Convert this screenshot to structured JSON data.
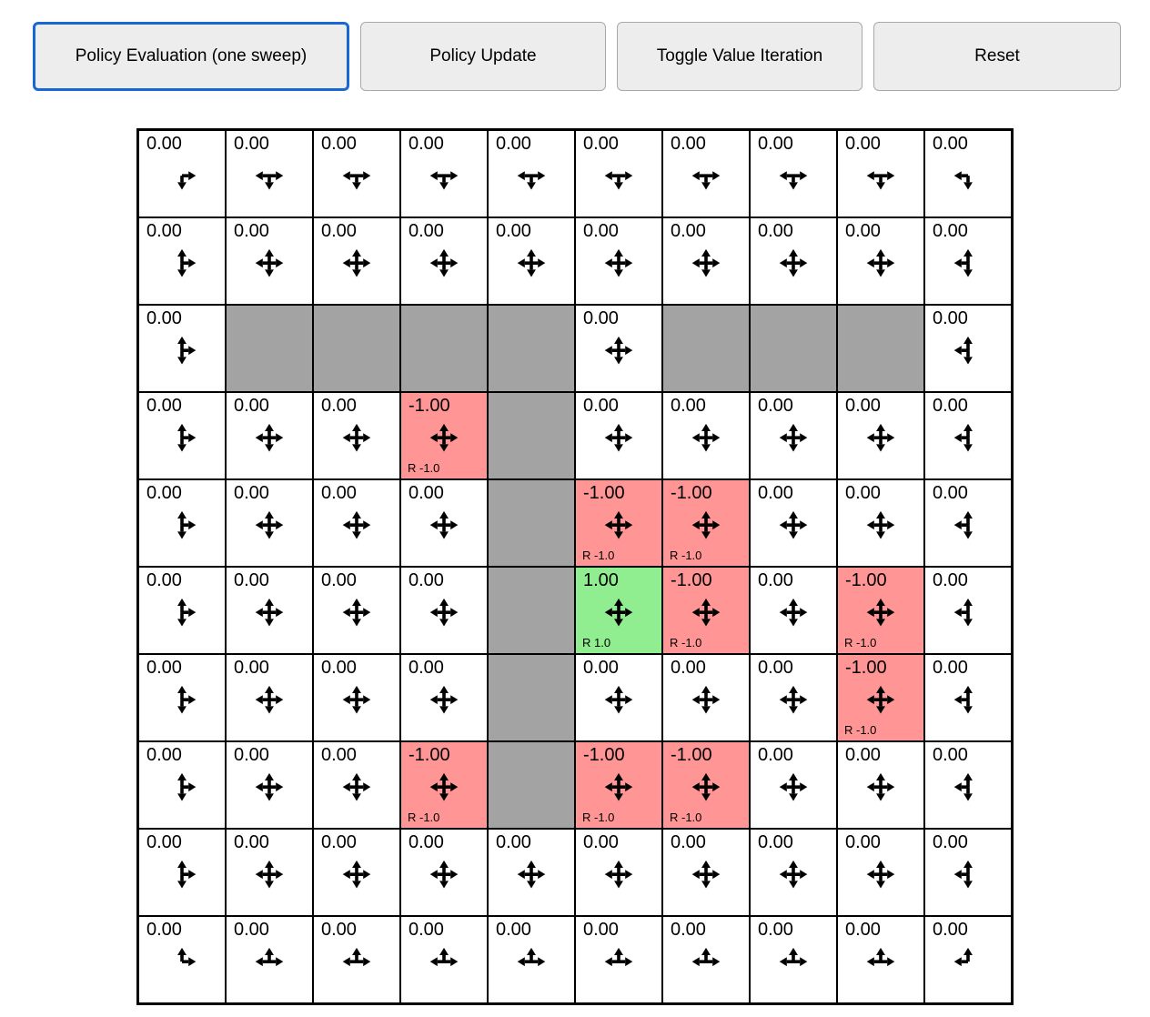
{
  "colors": {
    "focus_ring": "#1967d2",
    "wall": "#a3a3a3",
    "negative": "#ff9595",
    "positive": "#90ee90",
    "arrow": "#000000"
  },
  "toolbar": {
    "buttons": [
      {
        "label": "Policy Evaluation (one sweep)",
        "active": true
      },
      {
        "label": "Policy Update",
        "active": false
      },
      {
        "label": "Toggle Value Iteration",
        "active": false
      },
      {
        "label": "Reset",
        "active": false
      }
    ]
  },
  "grid": {
    "rows": 10,
    "cols": 10,
    "cells": [
      [
        {
          "type": "normal",
          "value": "0.00",
          "arrows": "RD"
        },
        {
          "type": "normal",
          "value": "0.00",
          "arrows": "LRD"
        },
        {
          "type": "normal",
          "value": "0.00",
          "arrows": "LRD"
        },
        {
          "type": "normal",
          "value": "0.00",
          "arrows": "LRD"
        },
        {
          "type": "normal",
          "value": "0.00",
          "arrows": "LRD"
        },
        {
          "type": "normal",
          "value": "0.00",
          "arrows": "LRD"
        },
        {
          "type": "normal",
          "value": "0.00",
          "arrows": "LRD"
        },
        {
          "type": "normal",
          "value": "0.00",
          "arrows": "LRD"
        },
        {
          "type": "normal",
          "value": "0.00",
          "arrows": "LRD"
        },
        {
          "type": "normal",
          "value": "0.00",
          "arrows": "LD"
        }
      ],
      [
        {
          "type": "normal",
          "value": "0.00",
          "arrows": "UDR"
        },
        {
          "type": "normal",
          "value": "0.00",
          "arrows": "UDLR"
        },
        {
          "type": "normal",
          "value": "0.00",
          "arrows": "UDLR"
        },
        {
          "type": "normal",
          "value": "0.00",
          "arrows": "UDLR"
        },
        {
          "type": "normal",
          "value": "0.00",
          "arrows": "UDLR"
        },
        {
          "type": "normal",
          "value": "0.00",
          "arrows": "UDLR"
        },
        {
          "type": "normal",
          "value": "0.00",
          "arrows": "UDLR"
        },
        {
          "type": "normal",
          "value": "0.00",
          "arrows": "UDLR"
        },
        {
          "type": "normal",
          "value": "0.00",
          "arrows": "UDLR"
        },
        {
          "type": "normal",
          "value": "0.00",
          "arrows": "UDL"
        }
      ],
      [
        {
          "type": "normal",
          "value": "0.00",
          "arrows": "UDR"
        },
        {
          "type": "wall"
        },
        {
          "type": "wall"
        },
        {
          "type": "wall"
        },
        {
          "type": "wall"
        },
        {
          "type": "normal",
          "value": "0.00",
          "arrows": "UDLR"
        },
        {
          "type": "wall"
        },
        {
          "type": "wall"
        },
        {
          "type": "wall"
        },
        {
          "type": "normal",
          "value": "0.00",
          "arrows": "UDL"
        }
      ],
      [
        {
          "type": "normal",
          "value": "0.00",
          "arrows": "UDR"
        },
        {
          "type": "normal",
          "value": "0.00",
          "arrows": "UDLR"
        },
        {
          "type": "normal",
          "value": "0.00",
          "arrows": "UDLR"
        },
        {
          "type": "negative",
          "value": "-1.00",
          "reward": "R -1.0",
          "arrows": "UDLR"
        },
        {
          "type": "wall"
        },
        {
          "type": "normal",
          "value": "0.00",
          "arrows": "UDLR"
        },
        {
          "type": "normal",
          "value": "0.00",
          "arrows": "UDLR"
        },
        {
          "type": "normal",
          "value": "0.00",
          "arrows": "UDLR"
        },
        {
          "type": "normal",
          "value": "0.00",
          "arrows": "UDLR"
        },
        {
          "type": "normal",
          "value": "0.00",
          "arrows": "UDL"
        }
      ],
      [
        {
          "type": "normal",
          "value": "0.00",
          "arrows": "UDR"
        },
        {
          "type": "normal",
          "value": "0.00",
          "arrows": "UDLR"
        },
        {
          "type": "normal",
          "value": "0.00",
          "arrows": "UDLR"
        },
        {
          "type": "normal",
          "value": "0.00",
          "arrows": "UDLR"
        },
        {
          "type": "wall"
        },
        {
          "type": "negative",
          "value": "-1.00",
          "reward": "R -1.0",
          "arrows": "UDLR"
        },
        {
          "type": "negative",
          "value": "-1.00",
          "reward": "R -1.0",
          "arrows": "UDLR"
        },
        {
          "type": "normal",
          "value": "0.00",
          "arrows": "UDLR"
        },
        {
          "type": "normal",
          "value": "0.00",
          "arrows": "UDLR"
        },
        {
          "type": "normal",
          "value": "0.00",
          "arrows": "UDL"
        }
      ],
      [
        {
          "type": "normal",
          "value": "0.00",
          "arrows": "UDR"
        },
        {
          "type": "normal",
          "value": "0.00",
          "arrows": "UDLR"
        },
        {
          "type": "normal",
          "value": "0.00",
          "arrows": "UDLR"
        },
        {
          "type": "normal",
          "value": "0.00",
          "arrows": "UDLR"
        },
        {
          "type": "wall"
        },
        {
          "type": "positive",
          "value": "1.00",
          "reward": "R 1.0",
          "arrows": "UDLR"
        },
        {
          "type": "negative",
          "value": "-1.00",
          "reward": "R -1.0",
          "arrows": "UDLR"
        },
        {
          "type": "normal",
          "value": "0.00",
          "arrows": "UDLR"
        },
        {
          "type": "negative",
          "value": "-1.00",
          "reward": "R -1.0",
          "arrows": "UDLR"
        },
        {
          "type": "normal",
          "value": "0.00",
          "arrows": "UDL"
        }
      ],
      [
        {
          "type": "normal",
          "value": "0.00",
          "arrows": "UDR"
        },
        {
          "type": "normal",
          "value": "0.00",
          "arrows": "UDLR"
        },
        {
          "type": "normal",
          "value": "0.00",
          "arrows": "UDLR"
        },
        {
          "type": "normal",
          "value": "0.00",
          "arrows": "UDLR"
        },
        {
          "type": "wall"
        },
        {
          "type": "normal",
          "value": "0.00",
          "arrows": "UDLR"
        },
        {
          "type": "normal",
          "value": "0.00",
          "arrows": "UDLR"
        },
        {
          "type": "normal",
          "value": "0.00",
          "arrows": "UDLR"
        },
        {
          "type": "negative",
          "value": "-1.00",
          "reward": "R -1.0",
          "arrows": "UDLR"
        },
        {
          "type": "normal",
          "value": "0.00",
          "arrows": "UDL"
        }
      ],
      [
        {
          "type": "normal",
          "value": "0.00",
          "arrows": "UDR"
        },
        {
          "type": "normal",
          "value": "0.00",
          "arrows": "UDLR"
        },
        {
          "type": "normal",
          "value": "0.00",
          "arrows": "UDLR"
        },
        {
          "type": "negative",
          "value": "-1.00",
          "reward": "R -1.0",
          "arrows": "UDLR"
        },
        {
          "type": "wall"
        },
        {
          "type": "negative",
          "value": "-1.00",
          "reward": "R -1.0",
          "arrows": "UDLR"
        },
        {
          "type": "negative",
          "value": "-1.00",
          "reward": "R -1.0",
          "arrows": "UDLR"
        },
        {
          "type": "normal",
          "value": "0.00",
          "arrows": "UDLR"
        },
        {
          "type": "normal",
          "value": "0.00",
          "arrows": "UDLR"
        },
        {
          "type": "normal",
          "value": "0.00",
          "arrows": "UDL"
        }
      ],
      [
        {
          "type": "normal",
          "value": "0.00",
          "arrows": "UDR"
        },
        {
          "type": "normal",
          "value": "0.00",
          "arrows": "UDLR"
        },
        {
          "type": "normal",
          "value": "0.00",
          "arrows": "UDLR"
        },
        {
          "type": "normal",
          "value": "0.00",
          "arrows": "UDLR"
        },
        {
          "type": "normal",
          "value": "0.00",
          "arrows": "UDLR"
        },
        {
          "type": "normal",
          "value": "0.00",
          "arrows": "UDLR"
        },
        {
          "type": "normal",
          "value": "0.00",
          "arrows": "UDLR"
        },
        {
          "type": "normal",
          "value": "0.00",
          "arrows": "UDLR"
        },
        {
          "type": "normal",
          "value": "0.00",
          "arrows": "UDLR"
        },
        {
          "type": "normal",
          "value": "0.00",
          "arrows": "UDL"
        }
      ],
      [
        {
          "type": "normal",
          "value": "0.00",
          "arrows": "UR"
        },
        {
          "type": "normal",
          "value": "0.00",
          "arrows": "ULR"
        },
        {
          "type": "normal",
          "value": "0.00",
          "arrows": "ULR"
        },
        {
          "type": "normal",
          "value": "0.00",
          "arrows": "ULR"
        },
        {
          "type": "normal",
          "value": "0.00",
          "arrows": "ULR"
        },
        {
          "type": "normal",
          "value": "0.00",
          "arrows": "ULR"
        },
        {
          "type": "normal",
          "value": "0.00",
          "arrows": "ULR"
        },
        {
          "type": "normal",
          "value": "0.00",
          "arrows": "ULR"
        },
        {
          "type": "normal",
          "value": "0.00",
          "arrows": "ULR"
        },
        {
          "type": "normal",
          "value": "0.00",
          "arrows": "UL"
        }
      ]
    ]
  }
}
